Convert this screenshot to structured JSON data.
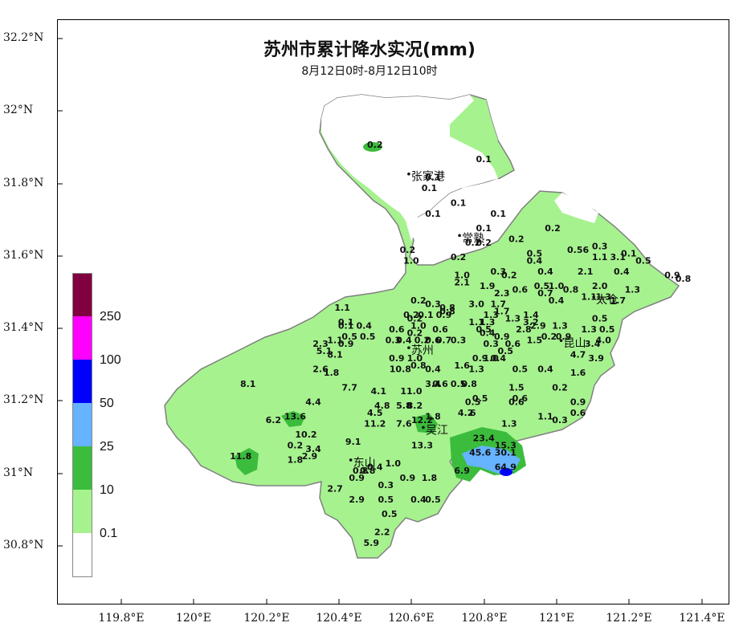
{
  "title": "苏州市累计降水实况(mm)",
  "subtitle": "8月12日0时-8月12日10时",
  "lat_labels": [
    "32.2°N",
    "32°N",
    "31.8°N",
    "31.6°N",
    "31.4°N",
    "31.2°N",
    "31°N",
    "30.8°N"
  ],
  "lon_labels": [
    "119.8°E",
    "120°E",
    "120.2°E",
    "120.4°E",
    "120.6°E",
    "120.8°E",
    "121°E",
    "121.2°E",
    "121.4°E"
  ],
  "legend": {
    "labels": [
      "250",
      "100",
      "50",
      "25",
      "10",
      "0.1"
    ],
    "colors": [
      "#800040",
      "#ff00ff",
      "#0000ff",
      "#66b3ff",
      "#3cbc3c",
      "#a6f28f",
      "#ffffff"
    ]
  },
  "colors": {
    "light_green": "#a6f28f",
    "green": "#3cbc3c",
    "light_blue": "#66b3ff",
    "blue": "#0000ff",
    "outline": "#808080"
  },
  "cities": [
    {
      "name": "张家港",
      "x": 120.6,
      "y": 31.81
    },
    {
      "name": "常熟",
      "x": 120.74,
      "y": 31.64
    },
    {
      "name": "太仓",
      "x": 121.11,
      "y": 31.47
    },
    {
      "name": "苏州",
      "x": 120.6,
      "y": 31.33
    },
    {
      "name": "昆山",
      "x": 121.02,
      "y": 31.35
    },
    {
      "name": "吴江",
      "x": 120.64,
      "y": 31.11
    },
    {
      "name": "东山",
      "x": 120.44,
      "y": 31.02
    }
  ],
  "stations": [
    {
      "v": "0.2",
      "x": 120.5,
      "y": 31.9
    },
    {
      "v": "0.1",
      "x": 120.8,
      "y": 31.86
    },
    {
      "v": "0.1",
      "x": 120.66,
      "y": 31.81
    },
    {
      "v": "0.1",
      "x": 120.65,
      "y": 31.78
    },
    {
      "v": "0.1",
      "x": 120.73,
      "y": 31.74
    },
    {
      "v": "0.1",
      "x": 120.66,
      "y": 31.71
    },
    {
      "v": "0.1",
      "x": 120.84,
      "y": 31.71
    },
    {
      "v": "0.1",
      "x": 120.8,
      "y": 31.67
    },
    {
      "v": "0.2",
      "x": 120.77,
      "y": 31.63
    },
    {
      "v": "0.2",
      "x": 120.8,
      "y": 31.63
    },
    {
      "v": "0.2",
      "x": 120.89,
      "y": 31.64
    },
    {
      "v": "0.2",
      "x": 120.99,
      "y": 31.67
    },
    {
      "v": "0.2",
      "x": 120.59,
      "y": 31.61
    },
    {
      "v": "1.0",
      "x": 120.6,
      "y": 31.58
    },
    {
      "v": "0.2",
      "x": 120.73,
      "y": 31.59
    },
    {
      "v": "0.5",
      "x": 120.94,
      "y": 31.6
    },
    {
      "v": "0.4",
      "x": 120.94,
      "y": 31.58
    },
    {
      "v": "0.56",
      "x": 121.06,
      "y": 31.61
    },
    {
      "v": "0.3",
      "x": 121.12,
      "y": 31.62
    },
    {
      "v": "0.1",
      "x": 121.2,
      "y": 31.6
    },
    {
      "v": "1.1",
      "x": 121.12,
      "y": 31.59
    },
    {
      "v": "3.1",
      "x": 121.17,
      "y": 31.59
    },
    {
      "v": "0.5",
      "x": 121.24,
      "y": 31.58
    },
    {
      "v": "2.1",
      "x": 121.08,
      "y": 31.55
    },
    {
      "v": "0.4",
      "x": 121.18,
      "y": 31.55
    },
    {
      "v": "0.9",
      "x": 121.32,
      "y": 31.54
    },
    {
      "v": "0.8",
      "x": 121.35,
      "y": 31.53
    },
    {
      "v": "0.4",
      "x": 120.97,
      "y": 31.55
    },
    {
      "v": "0.3",
      "x": 120.84,
      "y": 31.55
    },
    {
      "v": "0.2",
      "x": 120.87,
      "y": 31.54
    },
    {
      "v": "1.0",
      "x": 120.74,
      "y": 31.54
    },
    {
      "v": "2.1",
      "x": 120.74,
      "y": 31.52
    },
    {
      "v": "1.9",
      "x": 120.81,
      "y": 31.51
    },
    {
      "v": "0.6",
      "x": 120.9,
      "y": 31.5
    },
    {
      "v": "0.5",
      "x": 120.96,
      "y": 31.51
    },
    {
      "v": "1.0",
      "x": 121.0,
      "y": 31.51
    },
    {
      "v": "0.7",
      "x": 120.97,
      "y": 31.49
    },
    {
      "v": "0.8",
      "x": 121.04,
      "y": 31.5
    },
    {
      "v": "2.0",
      "x": 121.12,
      "y": 31.51
    },
    {
      "v": "1.3",
      "x": 121.21,
      "y": 31.5
    },
    {
      "v": "0.4",
      "x": 121.0,
      "y": 31.47
    },
    {
      "v": "1.1",
      "x": 121.09,
      "y": 31.48
    },
    {
      "v": "1.3",
      "x": 121.13,
      "y": 31.48
    },
    {
      "v": "1.7",
      "x": 121.17,
      "y": 31.47
    },
    {
      "v": "2.3",
      "x": 120.85,
      "y": 31.49
    },
    {
      "v": "3.0",
      "x": 120.78,
      "y": 31.46
    },
    {
      "v": "1.7",
      "x": 120.84,
      "y": 31.46
    },
    {
      "v": "0.2",
      "x": 120.62,
      "y": 31.47
    },
    {
      "v": "0.3",
      "x": 120.66,
      "y": 31.46
    },
    {
      "v": "0.8",
      "x": 120.7,
      "y": 31.45
    },
    {
      "v": "0.8",
      "x": 120.7,
      "y": 31.44
    },
    {
      "v": "1.1",
      "x": 120.41,
      "y": 31.45
    },
    {
      "v": "0.9",
      "x": 120.69,
      "y": 31.43
    },
    {
      "v": "0.1",
      "x": 120.64,
      "y": 31.43
    },
    {
      "v": "0.2",
      "x": 120.6,
      "y": 31.43
    },
    {
      "v": "0.2",
      "x": 120.61,
      "y": 31.42
    },
    {
      "v": "1.3",
      "x": 120.82,
      "y": 31.43
    },
    {
      "v": "1.7",
      "x": 120.85,
      "y": 31.44
    },
    {
      "v": "1.4",
      "x": 120.93,
      "y": 31.43
    },
    {
      "v": "0.5",
      "x": 121.12,
      "y": 31.42
    },
    {
      "v": "0.1",
      "x": 120.42,
      "y": 31.41
    },
    {
      "v": "0.1",
      "x": 120.42,
      "y": 31.4
    },
    {
      "v": "0.4",
      "x": 120.47,
      "y": 31.4
    },
    {
      "v": "1.0",
      "x": 120.62,
      "y": 31.4
    },
    {
      "v": "1.1",
      "x": 120.78,
      "y": 31.41
    },
    {
      "v": "1.3",
      "x": 120.81,
      "y": 31.41
    },
    {
      "v": "1.3",
      "x": 120.88,
      "y": 31.42
    },
    {
      "v": "3.2",
      "x": 120.93,
      "y": 31.41
    },
    {
      "v": "2.9",
      "x": 120.95,
      "y": 31.4
    },
    {
      "v": "1.3",
      "x": 121.01,
      "y": 31.4
    },
    {
      "v": "0.6",
      "x": 120.56,
      "y": 31.39
    },
    {
      "v": "0.6",
      "x": 120.68,
      "y": 31.39
    },
    {
      "v": "0.5",
      "x": 120.8,
      "y": 31.39
    },
    {
      "v": "0.4",
      "x": 120.81,
      "y": 31.38
    },
    {
      "v": "2.8",
      "x": 120.91,
      "y": 31.39
    },
    {
      "v": "1.3",
      "x": 121.09,
      "y": 31.39
    },
    {
      "v": "0.5",
      "x": 121.14,
      "y": 31.39
    },
    {
      "v": "0.5",
      "x": 120.43,
      "y": 31.37
    },
    {
      "v": "0.5",
      "x": 120.48,
      "y": 31.37
    },
    {
      "v": "0.2",
      "x": 120.61,
      "y": 31.38
    },
    {
      "v": "0.2",
      "x": 120.63,
      "y": 31.36
    },
    {
      "v": "0.9",
      "x": 120.85,
      "y": 31.37
    },
    {
      "v": "0.2",
      "x": 120.98,
      "y": 31.37
    },
    {
      "v": "0.9",
      "x": 121.02,
      "y": 31.37
    },
    {
      "v": "1.1",
      "x": 120.39,
      "y": 31.36
    },
    {
      "v": "0.9",
      "x": 120.42,
      "y": 31.35
    },
    {
      "v": "0.3",
      "x": 120.55,
      "y": 31.36
    },
    {
      "v": "0.4",
      "x": 120.58,
      "y": 31.36
    },
    {
      "v": "0.6",
      "x": 120.66,
      "y": 31.36
    },
    {
      "v": "0.7",
      "x": 120.69,
      "y": 31.36
    },
    {
      "v": "0.3",
      "x": 120.73,
      "y": 31.36
    },
    {
      "v": "1.5",
      "x": 120.94,
      "y": 31.36
    },
    {
      "v": "3.4",
      "x": 121.1,
      "y": 31.35
    },
    {
      "v": "4.0",
      "x": 121.13,
      "y": 31.36
    },
    {
      "v": "2.3",
      "x": 120.35,
      "y": 31.35
    },
    {
      "v": "5.1",
      "x": 120.36,
      "y": 31.33
    },
    {
      "v": "8.1",
      "x": 120.39,
      "y": 31.32
    },
    {
      "v": "0.3",
      "x": 120.82,
      "y": 31.35
    },
    {
      "v": "0.6",
      "x": 120.88,
      "y": 31.35
    },
    {
      "v": "0.5",
      "x": 120.86,
      "y": 31.33
    },
    {
      "v": "4.7",
      "x": 121.06,
      "y": 31.32
    },
    {
      "v": "3.9",
      "x": 121.11,
      "y": 31.31
    },
    {
      "v": "0.9",
      "x": 120.56,
      "y": 31.31
    },
    {
      "v": "1.0",
      "x": 120.82,
      "y": 31.31
    },
    {
      "v": "0.9",
      "x": 120.79,
      "y": 31.31
    },
    {
      "v": "0.4",
      "x": 120.84,
      "y": 31.31
    },
    {
      "v": "1.0",
      "x": 120.61,
      "y": 31.31
    },
    {
      "v": "2.6",
      "x": 120.35,
      "y": 31.28
    },
    {
      "v": "1.8",
      "x": 120.38,
      "y": 31.27
    },
    {
      "v": "10.8",
      "x": 120.57,
      "y": 31.28
    },
    {
      "v": "0.8",
      "x": 120.62,
      "y": 31.29
    },
    {
      "v": "0.4",
      "x": 120.66,
      "y": 31.28
    },
    {
      "v": "1.6",
      "x": 120.74,
      "y": 31.29
    },
    {
      "v": "1.3",
      "x": 120.78,
      "y": 31.28
    },
    {
      "v": "0.5",
      "x": 120.9,
      "y": 31.28
    },
    {
      "v": "0.4",
      "x": 120.97,
      "y": 31.28
    },
    {
      "v": "1.6",
      "x": 121.06,
      "y": 31.27
    },
    {
      "v": "8.1",
      "x": 120.15,
      "y": 31.24
    },
    {
      "v": "7.7",
      "x": 120.43,
      "y": 31.23
    },
    {
      "v": "4.1",
      "x": 120.51,
      "y": 31.22
    },
    {
      "v": "3.4",
      "x": 120.66,
      "y": 31.24
    },
    {
      "v": "0.6",
      "x": 120.68,
      "y": 31.24
    },
    {
      "v": "0.5",
      "x": 120.73,
      "y": 31.24
    },
    {
      "v": "0.8",
      "x": 120.76,
      "y": 31.24
    },
    {
      "v": "1.5",
      "x": 120.89,
      "y": 31.23
    },
    {
      "v": "0.2",
      "x": 121.01,
      "y": 31.23
    },
    {
      "v": "11.0",
      "x": 120.6,
      "y": 31.22
    },
    {
      "v": "0.5",
      "x": 120.79,
      "y": 31.2
    },
    {
      "v": "0.6",
      "x": 120.9,
      "y": 31.2
    },
    {
      "v": "0.6",
      "x": 120.89,
      "y": 31.19
    },
    {
      "v": "0.9",
      "x": 121.06,
      "y": 31.19
    },
    {
      "v": "4.4",
      "x": 120.33,
      "y": 31.19
    },
    {
      "v": "4.8",
      "x": 120.52,
      "y": 31.18
    },
    {
      "v": "5.8",
      "x": 120.58,
      "y": 31.18
    },
    {
      "v": "8.2",
      "x": 120.61,
      "y": 31.18
    },
    {
      "v": "0.5",
      "x": 120.77,
      "y": 31.19
    },
    {
      "v": "4.5",
      "x": 120.5,
      "y": 31.16
    },
    {
      "v": "4.2",
      "x": 120.75,
      "y": 31.16
    },
    {
      "v": "6",
      "x": 120.77,
      "y": 31.16
    },
    {
      "v": "0.6",
      "x": 121.06,
      "y": 31.16
    },
    {
      "v": "1.1",
      "x": 120.97,
      "y": 31.15
    },
    {
      "v": "0.3",
      "x": 121.01,
      "y": 31.14
    },
    {
      "v": "6.2",
      "x": 120.22,
      "y": 31.14
    },
    {
      "v": "13.6",
      "x": 120.28,
      "y": 31.15
    },
    {
      "v": "12.2",
      "x": 120.63,
      "y": 31.14
    },
    {
      "v": "1.8",
      "x": 120.66,
      "y": 31.15
    },
    {
      "v": "11.2",
      "x": 120.5,
      "y": 31.13
    },
    {
      "v": "7.6",
      "x": 120.58,
      "y": 31.13
    },
    {
      "v": "1.3",
      "x": 120.87,
      "y": 31.13
    },
    {
      "v": "10.2",
      "x": 120.31,
      "y": 31.1
    },
    {
      "v": "23.4",
      "x": 120.8,
      "y": 31.09
    },
    {
      "v": "9.1",
      "x": 120.44,
      "y": 31.08
    },
    {
      "v": "13.3",
      "x": 120.63,
      "y": 31.07
    },
    {
      "v": "15.3",
      "x": 120.86,
      "y": 31.07
    },
    {
      "v": "0.2",
      "x": 120.28,
      "y": 31.07
    },
    {
      "v": "3.4",
      "x": 120.33,
      "y": 31.06
    },
    {
      "v": "2.9",
      "x": 120.32,
      "y": 31.04
    },
    {
      "v": "45.6",
      "x": 120.79,
      "y": 31.05
    },
    {
      "v": "30.1",
      "x": 120.86,
      "y": 31.05
    },
    {
      "v": "11.8",
      "x": 120.13,
      "y": 31.04
    },
    {
      "v": "1.8",
      "x": 120.28,
      "y": 31.03
    },
    {
      "v": "1.0",
      "x": 120.55,
      "y": 31.02
    },
    {
      "v": "0.4",
      "x": 120.5,
      "y": 31.01
    },
    {
      "v": "0.8",
      "x": 120.46,
      "y": 31.0
    },
    {
      "v": "0.8",
      "x": 120.48,
      "y": 31.0
    },
    {
      "v": "64.9",
      "x": 120.86,
      "y": 31.01
    },
    {
      "v": "6.9",
      "x": 120.74,
      "y": 31.0
    },
    {
      "v": "0.9",
      "x": 120.45,
      "y": 30.98
    },
    {
      "v": "0.9",
      "x": 120.59,
      "y": 30.98
    },
    {
      "v": "1.8",
      "x": 120.65,
      "y": 30.98
    },
    {
      "v": "0.3",
      "x": 120.53,
      "y": 30.96
    },
    {
      "v": "2.7",
      "x": 120.39,
      "y": 30.95
    },
    {
      "v": "2.9",
      "x": 120.45,
      "y": 30.92
    },
    {
      "v": "0.5",
      "x": 120.53,
      "y": 30.92
    },
    {
      "v": "0.4",
      "x": 120.62,
      "y": 30.92
    },
    {
      "v": "0.5",
      "x": 120.66,
      "y": 30.92
    },
    {
      "v": "0.5",
      "x": 120.54,
      "y": 30.88
    },
    {
      "v": "2.2",
      "x": 120.52,
      "y": 30.83
    },
    {
      "v": "5.9",
      "x": 120.49,
      "y": 30.8
    }
  ]
}
